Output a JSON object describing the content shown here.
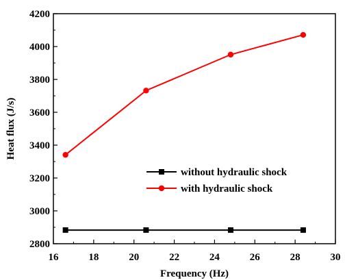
{
  "chart_data": {
    "type": "line",
    "xlabel": "Frequency (Hz)",
    "ylabel": "Heat flux (J/s)",
    "xlim": [
      16,
      30
    ],
    "ylim": [
      2800,
      4200
    ],
    "xticks": [
      16,
      18,
      20,
      22,
      24,
      26,
      28,
      30
    ],
    "yticks": [
      2800,
      3000,
      3200,
      3400,
      3600,
      3800,
      4000,
      4200
    ],
    "grid": false,
    "legend_position": "center-right",
    "series": [
      {
        "name": "without hydraulic shock",
        "color": "#000000",
        "marker": "square",
        "x": [
          16.6,
          20.6,
          24.8,
          28.4
        ],
        "y": [
          2883,
          2883,
          2883,
          2883
        ]
      },
      {
        "name": "with hydraulic shock",
        "color": "#ff0000",
        "marker": "circle",
        "x": [
          16.6,
          20.6,
          24.8,
          28.4
        ],
        "y": [
          3341,
          3732,
          3951,
          4071
        ]
      }
    ]
  }
}
